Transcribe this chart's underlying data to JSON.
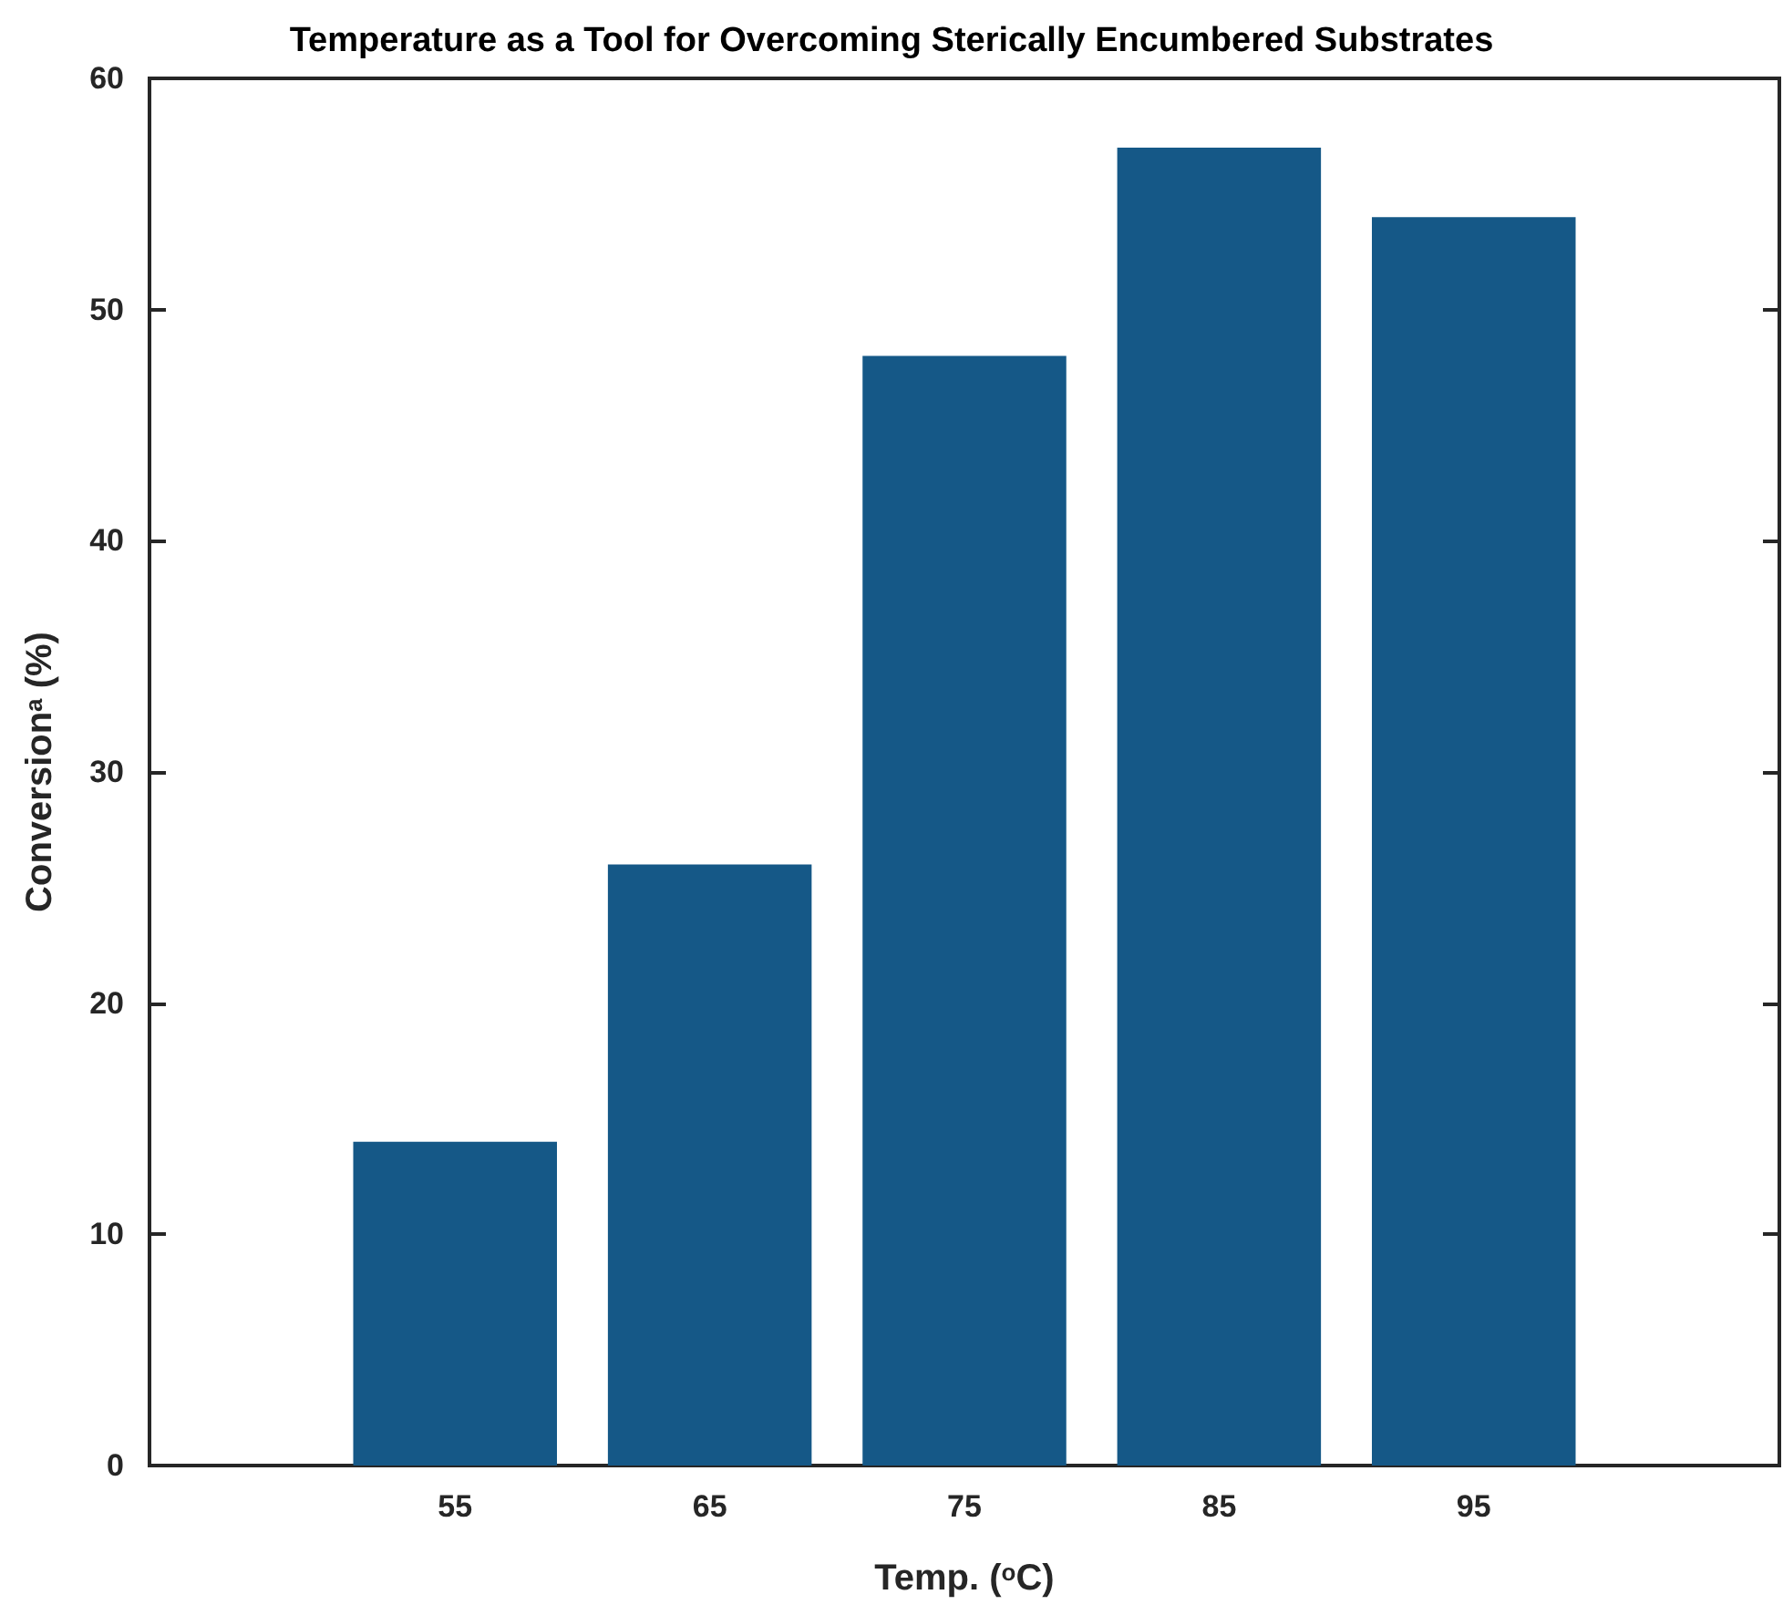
{
  "chart_data": {
    "type": "bar",
    "title": "Temperature as a Tool for Overcoming Sterically Encumbered Substrates",
    "xlabel": "Temp. ($^{o}$C)",
    "ylabel": "Conversion$^{a}$ (%)",
    "x": [
      55,
      65,
      75,
      85,
      95
    ],
    "values": [
      14,
      26,
      48,
      57,
      54
    ],
    "color": "#155887",
    "xlim": [
      43,
      107
    ],
    "xticks": [
      55,
      65,
      75,
      85,
      95
    ],
    "ylim": [
      0,
      60
    ],
    "yticks": [
      0,
      10,
      20,
      30,
      40,
      50,
      60
    ]
  }
}
